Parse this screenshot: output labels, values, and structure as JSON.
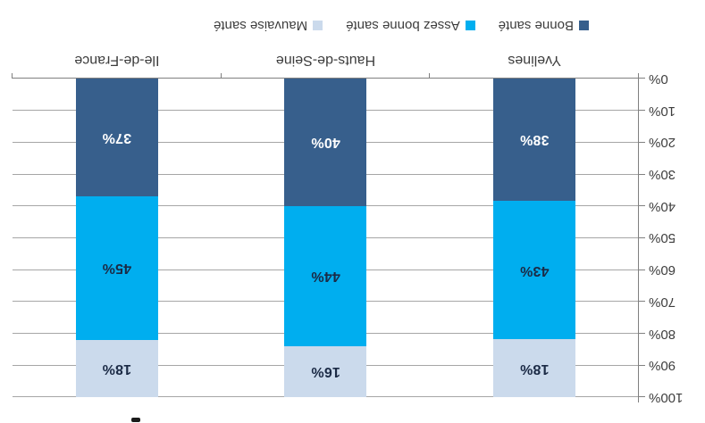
{
  "chart_data": {
    "type": "bar",
    "variant": "stacked-column",
    "rotation_deg": 180,
    "title": "",
    "categories": [
      "Yvelines",
      "Hauts-de-Seine",
      "Ile-de-France"
    ],
    "series": [
      {
        "name": "Bonne santé",
        "color": "#375F8C",
        "label_color": "#FFFFFF",
        "values": [
          38,
          40,
          37
        ],
        "labels": [
          "38%",
          "40%",
          "37%"
        ]
      },
      {
        "name": "Assez bonne santé",
        "color": "#00AEEF",
        "label_color": "#1B2A45",
        "values": [
          43,
          44,
          45
        ],
        "labels": [
          "43%",
          "44%",
          "45%"
        ]
      },
      {
        "name": "Mauvaise santé",
        "color": "#CBDAEC",
        "label_color": "#1B2A45",
        "values": [
          18,
          16,
          18
        ],
        "labels": [
          "18%",
          "16%",
          "18%"
        ]
      }
    ],
    "y_ticks": [
      "0%",
      "10%",
      "20%",
      "30%",
      "40%",
      "50%",
      "60%",
      "70%",
      "80%",
      "90%",
      "100%"
    ],
    "ylim": [
      0,
      100
    ],
    "grid": true,
    "legend_position": "bottom",
    "legend_order": [
      "Bonne santé",
      "Assez bonne santé",
      "Mauvaise santé"
    ]
  },
  "style": {
    "gridline_color": "#A6A6A6",
    "axis_color": "#808080",
    "text_color": "#3D3D3D",
    "background": "#FFFFFF"
  }
}
